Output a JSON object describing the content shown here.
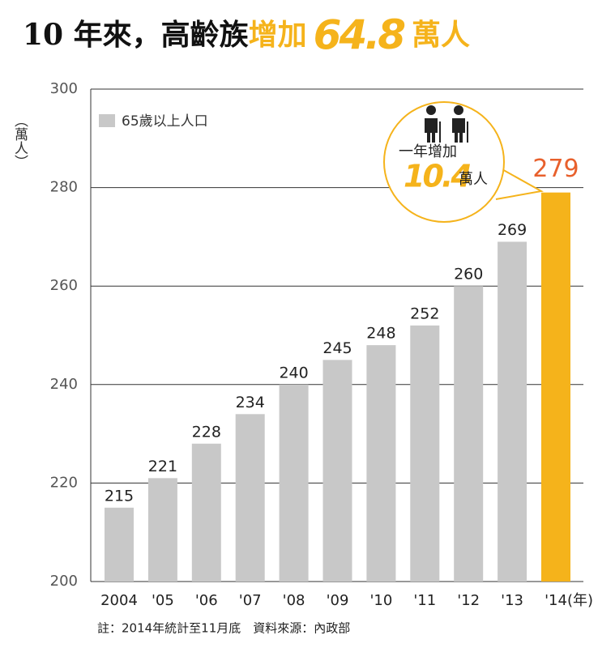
{
  "chart_data": {
    "type": "bar",
    "title_parts": [
      "10 年來，高齡族",
      "增加",
      "64.8",
      "萬人"
    ],
    "y_label": "（萬人）",
    "x_unit": "(年)",
    "categories": [
      "2004",
      "'05",
      "'06",
      "'07",
      "'08",
      "'09",
      "'10",
      "'11",
      "'12",
      "'13",
      "'14"
    ],
    "series": [
      {
        "name": "65歲以上人口",
        "color": "#c8c8c8",
        "values": [
          215,
          221,
          228,
          234,
          240,
          245,
          248,
          252,
          260,
          269,
          279
        ],
        "colors": [
          "#c8c8c8",
          "#c8c8c8",
          "#c8c8c8",
          "#c8c8c8",
          "#c8c8c8",
          "#c8c8c8",
          "#c8c8c8",
          "#c8c8c8",
          "#c8c8c8",
          "#c8c8c8",
          "#f5b31b"
        ],
        "label_colors": [
          "#222",
          "#222",
          "#222",
          "#222",
          "#222",
          "#222",
          "#222",
          "#222",
          "#222",
          "#222",
          "#e8602c"
        ]
      }
    ],
    "ylim": [
      200,
      300
    ],
    "yticks": [
      200,
      220,
      240,
      260,
      280,
      300
    ],
    "grid": true,
    "legend": "upper left",
    "annotation": {
      "text": "一年增加",
      "value": "10.4",
      "unit": "萬人"
    },
    "note": "註：2014年統計至11月底　資料來源：內政部"
  }
}
